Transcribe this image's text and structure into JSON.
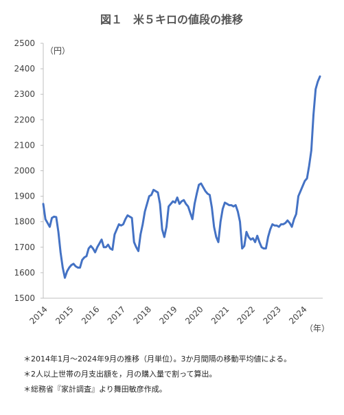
{
  "chart_data": {
    "type": "line",
    "title": "図１　米５キロの値段の推移",
    "y_unit_label": "（円）",
    "x_unit_label": "（年）",
    "notes": [
      "＊2014年1月～2024年9月の推移（月単位）。3か月間隔の移動平均値による。",
      "＊2人以上世帯の月支出額を，月の購入量で割って算出。",
      "＊総務省『家計調査』より舞田敏彦作成。"
    ],
    "color": "#4472c4",
    "ylim": [
      1500,
      2500
    ],
    "yticks": [
      1500,
      1600,
      1700,
      1800,
      1900,
      2000,
      2100,
      2200,
      2300,
      2400,
      2500
    ],
    "categories": [
      "2014",
      null,
      null,
      null,
      null,
      null,
      null,
      null,
      null,
      null,
      null,
      null,
      "2015",
      null,
      null,
      null,
      null,
      null,
      null,
      null,
      null,
      null,
      null,
      null,
      "2016",
      null,
      null,
      null,
      null,
      null,
      null,
      null,
      null,
      null,
      null,
      null,
      "2017",
      null,
      null,
      null,
      null,
      null,
      null,
      null,
      null,
      null,
      null,
      null,
      "2018",
      null,
      null,
      null,
      null,
      null,
      null,
      null,
      null,
      null,
      null,
      null,
      "2019",
      null,
      null,
      null,
      null,
      null,
      null,
      null,
      null,
      null,
      null,
      null,
      "2020",
      null,
      null,
      null,
      null,
      null,
      null,
      null,
      null,
      null,
      null,
      null,
      "2021",
      null,
      null,
      null,
      null,
      null,
      null,
      null,
      null,
      null,
      null,
      null,
      "2022",
      null,
      null,
      null,
      null,
      null,
      null,
      null,
      null,
      null,
      null,
      null,
      "2023",
      null,
      null,
      null,
      null,
      null,
      null,
      null,
      null,
      null,
      null,
      null,
      "2024",
      null,
      null,
      null,
      null,
      null,
      null,
      null,
      null
    ],
    "values": [
      1870,
      1810,
      1795,
      1780,
      1815,
      1820,
      1818,
      1760,
      1680,
      1620,
      1580,
      1605,
      1620,
      1630,
      1635,
      1625,
      1620,
      1620,
      1650,
      1660,
      1665,
      1695,
      1705,
      1695,
      1680,
      1700,
      1715,
      1730,
      1700,
      1700,
      1710,
      1695,
      1690,
      1750,
      1770,
      1790,
      1785,
      1790,
      1810,
      1825,
      1820,
      1815,
      1720,
      1700,
      1685,
      1750,
      1790,
      1840,
      1870,
      1900,
      1905,
      1925,
      1920,
      1915,
      1870,
      1770,
      1740,
      1780,
      1860,
      1870,
      1880,
      1875,
      1895,
      1870,
      1880,
      1885,
      1870,
      1860,
      1835,
      1810,
      1870,
      1910,
      1945,
      1950,
      1935,
      1920,
      1910,
      1905,
      1855,
      1780,
      1740,
      1720,
      1800,
      1850,
      1875,
      1870,
      1865,
      1865,
      1860,
      1865,
      1840,
      1800,
      1695,
      1705,
      1760,
      1740,
      1730,
      1735,
      1720,
      1745,
      1720,
      1700,
      1695,
      1695,
      1740,
      1770,
      1790,
      1785,
      1785,
      1780,
      1790,
      1790,
      1795,
      1805,
      1795,
      1780,
      1810,
      1830,
      1900,
      1920,
      1940,
      1960,
      1970,
      2020,
      2080,
      2220,
      2320,
      2350,
      2370
    ]
  }
}
